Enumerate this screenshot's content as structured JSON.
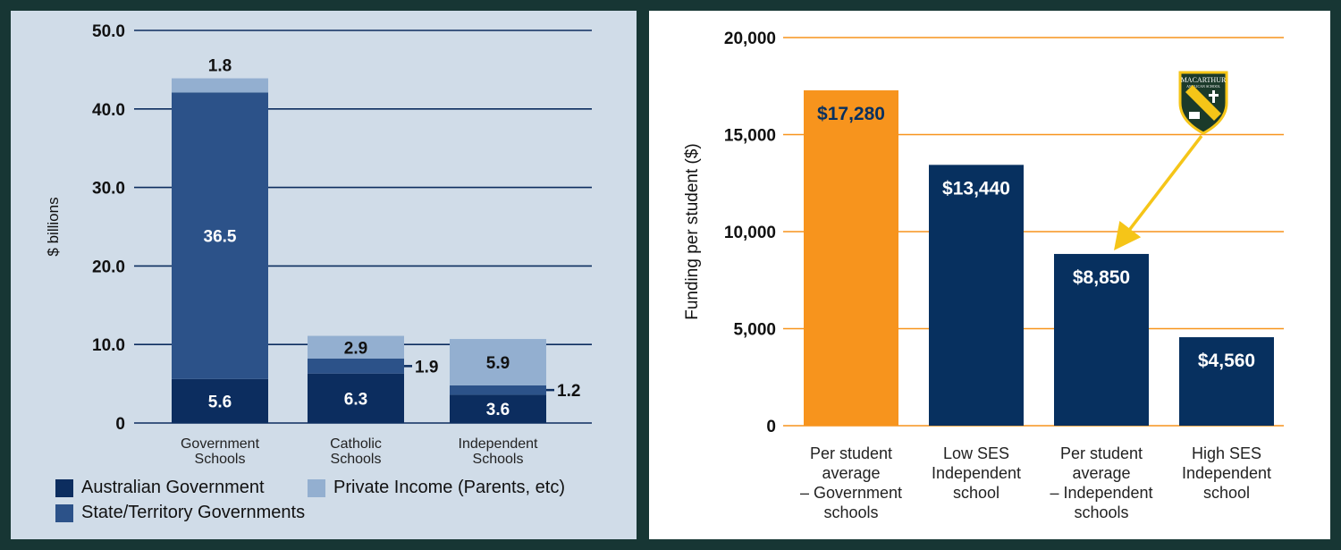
{
  "chart_data": [
    {
      "type": "bar",
      "stacked": true,
      "ylabel": "$ billions",
      "ylim": [
        0,
        50
      ],
      "yticks": [
        "0",
        "10.0",
        "20.0",
        "30.0",
        "40.0",
        "50.0"
      ],
      "categories": [
        "Government Schools",
        "Catholic Schools",
        "Independent Schools"
      ],
      "categories_lines": [
        [
          "Government",
          "Schools"
        ],
        [
          "Catholic",
          "Schools"
        ],
        [
          "Independent",
          "Schools"
        ]
      ],
      "series": [
        {
          "name": "Australian Government",
          "color": "#0c2d5f",
          "values": [
            5.6,
            6.3,
            3.6
          ],
          "labels": [
            "5.6",
            "6.3",
            "3.6"
          ]
        },
        {
          "name": "State/Territory Governments",
          "color": "#2c5289",
          "values": [
            36.5,
            1.9,
            1.2
          ],
          "labels": [
            "36.5",
            "1.9",
            "1.2"
          ]
        },
        {
          "name": "Private Income (Parents, etc)",
          "color": "#93afd0",
          "values": [
            1.8,
            2.9,
            5.9
          ],
          "labels": [
            "1.8",
            "2.9",
            "5.9"
          ]
        }
      ],
      "legend_position": "bottom",
      "grid": true
    },
    {
      "type": "bar",
      "ylabel": "Funding per student ($)",
      "ylim": [
        0,
        20000
      ],
      "yticks": [
        "0",
        "5,000",
        "10,000",
        "15,000",
        "20,000"
      ],
      "categories": [
        "Per student average – Government schools",
        "Low SES Independent school",
        "Per student average – Independent schools",
        "High SES Independent school"
      ],
      "categories_lines": [
        [
          "Per student",
          "average",
          "– Government",
          "schools"
        ],
        [
          "Low SES",
          "Independent",
          "school"
        ],
        [
          "Per student",
          "average",
          "– Independent",
          "schools"
        ],
        [
          "High SES",
          "Independent",
          "school"
        ]
      ],
      "values": [
        17280,
        13440,
        8850,
        4560
      ],
      "labels": [
        "$17,280",
        "$13,440",
        "$8,850",
        "$4,560"
      ],
      "colors": [
        "#f7941d",
        "#07305f",
        "#07305f",
        "#07305f"
      ],
      "grid": true,
      "annotation": {
        "type": "arrow",
        "from": "school-crest",
        "to_category": 2,
        "color": "#f5c518"
      },
      "crest": {
        "text_top": "MACARTHUR",
        "text_sub": "ANGLICAN SCHOOL",
        "color": "#f5c518"
      }
    }
  ]
}
